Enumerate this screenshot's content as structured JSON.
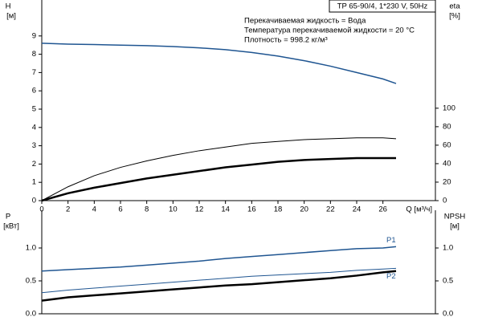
{
  "chart_data": [
    {
      "type": "line",
      "title": "TP 65-90/4, 1*230 V, 50Hz",
      "notes": [
        "Перекачиваемая жидкость = Вода",
        "Температура перекачиваемой жидкости = 20 °C",
        "Плотность = 998.2 кг/м³"
      ],
      "xlabel": "Q [м³/ч]",
      "ylabel": "H",
      "yunit": "[м]",
      "y2label": "eta",
      "y2unit": "[%]",
      "x": [
        0,
        2,
        4,
        6,
        8,
        10,
        12,
        14,
        16,
        18,
        20,
        22,
        24,
        26,
        27
      ],
      "xlim": [
        0,
        30
      ],
      "xticks": [
        0,
        2,
        4,
        6,
        8,
        10,
        12,
        14,
        16,
        18,
        20,
        22,
        24,
        26
      ],
      "ylim": [
        0,
        10
      ],
      "yticks": [
        0,
        1,
        2,
        3,
        4,
        5,
        6,
        7,
        8,
        9
      ],
      "y2lim": [
        0,
        198
      ],
      "y2ticks": [
        0,
        20,
        40,
        60,
        80,
        100
      ],
      "series": [
        {
          "color": "#1f5591",
          "line_width": 1.5,
          "values": [
            8.6,
            8.55,
            8.53,
            8.5,
            8.47,
            8.42,
            8.35,
            8.25,
            8.1,
            7.9,
            7.65,
            7.35,
            7.0,
            6.65,
            6.4
          ]
        },
        {
          "color": "#000000",
          "line_width": 1,
          "axis": "y2",
          "values": [
            0,
            15,
            27,
            36,
            43,
            49,
            54,
            58,
            62,
            64,
            66,
            67,
            68,
            68,
            67
          ]
        },
        {
          "color": "#000000",
          "line_width": 2.5,
          "axis": "y2",
          "values": [
            0,
            8,
            14,
            19,
            24,
            28,
            32,
            36,
            39,
            42,
            44,
            45,
            46,
            46,
            46
          ]
        }
      ]
    },
    {
      "type": "line",
      "ylabel": "P",
      "yunit": "[кВт]",
      "y2label": "NPSH",
      "y2unit": "[м]",
      "x": [
        0,
        2,
        4,
        6,
        8,
        10,
        12,
        14,
        16,
        18,
        20,
        22,
        24,
        26,
        27
      ],
      "xlim": [
        0,
        30
      ],
      "ylim": [
        0,
        1.5
      ],
      "yticks": [
        {
          "value": 0,
          "label": "0.0"
        },
        0.5,
        {
          "value": 1,
          "label": "1.0"
        }
      ],
      "y2lim": [
        0,
        1.5
      ],
      "y2ticks": [
        {
          "value": 0,
          "label": "0.0"
        },
        0.5,
        {
          "value": 1,
          "label": "1.0"
        }
      ],
      "series": [
        {
          "name": "P1",
          "color": "#1f5591",
          "line_width": 1.5,
          "values": [
            0.65,
            0.67,
            0.69,
            0.71,
            0.74,
            0.77,
            0.8,
            0.84,
            0.87,
            0.9,
            0.93,
            0.96,
            0.99,
            1.0,
            1.02
          ]
        },
        {
          "name": "P2",
          "color": "#1f5591",
          "line_width": 1,
          "values": [
            0.32,
            0.36,
            0.39,
            0.42,
            0.45,
            0.48,
            0.51,
            0.54,
            0.57,
            0.59,
            0.61,
            0.63,
            0.66,
            0.68,
            0.69
          ]
        },
        {
          "color": "#000000",
          "line_width": 2.5,
          "axis": "y2",
          "values": [
            0.2,
            0.25,
            0.28,
            0.31,
            0.34,
            0.37,
            0.4,
            0.43,
            0.45,
            0.48,
            0.51,
            0.54,
            0.58,
            0.63,
            0.65
          ]
        }
      ]
    }
  ]
}
